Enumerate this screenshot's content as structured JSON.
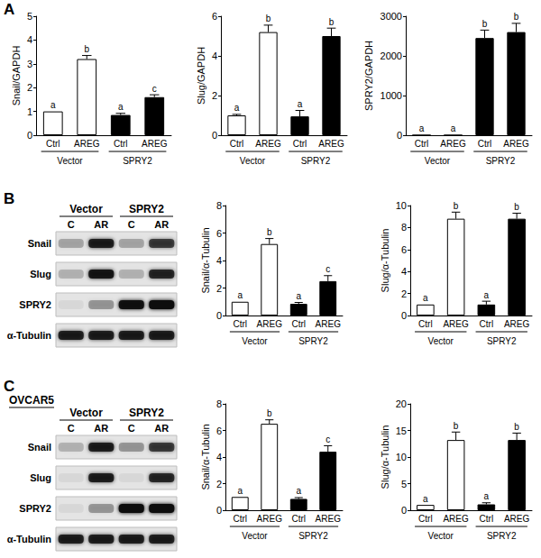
{
  "panel_labels": [
    "A",
    "B",
    "C"
  ],
  "cell_line": {
    "panel": "C",
    "label": "OVCAR5"
  },
  "chart_data": [
    {
      "type": "bar",
      "panel": "A",
      "y_label": "Snail/GAPDH",
      "categories": [
        "Ctrl",
        "AREG",
        "Ctrl",
        "AREG"
      ],
      "groups": [
        "Vector",
        "SPRY2"
      ],
      "values": [
        1,
        3.2,
        0.85,
        1.6
      ],
      "errors": [
        0,
        0.15,
        0.07,
        0.1
      ],
      "letters": [
        "a",
        "b",
        "a",
        "c"
      ],
      "colors": [
        "#ffffff",
        "#ffffff",
        "#000000",
        "#000000"
      ],
      "ylim": [
        0,
        5
      ],
      "yticks": [
        0,
        1,
        2,
        3,
        4,
        5
      ],
      "grid": false
    },
    {
      "type": "bar",
      "panel": "A",
      "y_label": "Slug/GAPDH",
      "categories": [
        "Ctrl",
        "AREG",
        "Ctrl",
        "AREG"
      ],
      "groups": [
        "Vector",
        "SPRY2"
      ],
      "values": [
        1,
        5.2,
        0.95,
        5.0
      ],
      "errors": [
        0.05,
        0.35,
        0.3,
        0.4
      ],
      "letters": [
        "a",
        "b",
        "a",
        "b"
      ],
      "colors": [
        "#ffffff",
        "#ffffff",
        "#000000",
        "#000000"
      ],
      "ylim": [
        0,
        6
      ],
      "yticks": [
        0,
        2,
        4,
        6
      ],
      "grid": false
    },
    {
      "type": "bar",
      "panel": "A",
      "y_label": "SPRY2/GAPDH",
      "categories": [
        "Ctrl",
        "AREG",
        "Ctrl",
        "AREG"
      ],
      "groups": [
        "Vector",
        "SPRY2"
      ],
      "values": [
        1,
        1,
        2450,
        2600
      ],
      "errors": [
        0,
        0,
        200,
        220
      ],
      "letters": [
        "a",
        "a",
        "b",
        "b"
      ],
      "colors": [
        "#ffffff",
        "#ffffff",
        "#000000",
        "#000000"
      ],
      "ylim": [
        0,
        3000
      ],
      "yticks": [
        0,
        1000,
        2000,
        3000
      ],
      "grid": false
    },
    {
      "type": "bar",
      "panel": "B",
      "y_label": "Snail/α-Tubulin",
      "categories": [
        "Ctrl",
        "AREG",
        "Ctrl",
        "AREG"
      ],
      "groups": [
        "Vector",
        "SPRY2"
      ],
      "values": [
        1,
        5.2,
        0.85,
        2.5
      ],
      "errors": [
        0,
        0.4,
        0.1,
        0.4
      ],
      "letters": [
        "a",
        "b",
        "a",
        "c"
      ],
      "colors": [
        "#ffffff",
        "#ffffff",
        "#000000",
        "#000000"
      ],
      "ylim": [
        0,
        8
      ],
      "yticks": [
        0,
        2,
        4,
        6,
        8
      ],
      "grid": false
    },
    {
      "type": "bar",
      "panel": "B",
      "y_label": "Slug/α-Tubulin",
      "categories": [
        "Ctrl",
        "AREG",
        "Ctrl",
        "AREG"
      ],
      "groups": [
        "Vector",
        "SPRY2"
      ],
      "values": [
        1,
        8.8,
        1.0,
        8.8
      ],
      "errors": [
        0,
        0.6,
        0.3,
        0.5
      ],
      "letters": [
        "a",
        "b",
        "a",
        "b"
      ],
      "colors": [
        "#ffffff",
        "#ffffff",
        "#000000",
        "#000000"
      ],
      "ylim": [
        0,
        10
      ],
      "yticks": [
        0,
        2,
        4,
        6,
        8,
        10
      ],
      "grid": false
    },
    {
      "type": "bar",
      "panel": "C",
      "y_label": "Snail/α-Tubulin",
      "categories": [
        "Ctrl",
        "AREG",
        "Ctrl",
        "AREG"
      ],
      "groups": [
        "Vector",
        "SPRY2"
      ],
      "values": [
        1,
        6.5,
        0.85,
        4.4
      ],
      "errors": [
        0,
        0.3,
        0.1,
        0.45
      ],
      "letters": [
        "a",
        "b",
        "a",
        "c"
      ],
      "colors": [
        "#ffffff",
        "#ffffff",
        "#000000",
        "#000000"
      ],
      "ylim": [
        0,
        8
      ],
      "yticks": [
        0,
        2,
        4,
        6,
        8
      ],
      "grid": false
    },
    {
      "type": "bar",
      "panel": "C",
      "y_label": "Slug/α-Tubulin",
      "categories": [
        "Ctrl",
        "AREG",
        "Ctrl",
        "AREG"
      ],
      "groups": [
        "Vector",
        "SPRY2"
      ],
      "values": [
        1,
        13.2,
        1.1,
        13.2
      ],
      "errors": [
        0,
        1.5,
        0.3,
        1.3
      ],
      "letters": [
        "a",
        "b",
        "a",
        "b"
      ],
      "colors": [
        "#ffffff",
        "#ffffff",
        "#000000",
        "#000000"
      ],
      "ylim": [
        0,
        20
      ],
      "yticks": [
        0,
        5,
        10,
        15,
        20
      ],
      "grid": false
    }
  ],
  "blots": [
    {
      "panel": "B",
      "groups": [
        "Vector",
        "SPRY2"
      ],
      "lanes": [
        "C",
        "AR",
        "C",
        "AR"
      ],
      "rows": [
        {
          "label": "Snail",
          "intensity": [
            0.25,
            0.85,
            0.25,
            0.7
          ]
        },
        {
          "label": "Slug",
          "intensity": [
            0.2,
            0.9,
            0.2,
            0.8
          ]
        },
        {
          "label": "SPRY2",
          "intensity": [
            0.05,
            0.3,
            0.95,
            1.0
          ]
        },
        {
          "label": "α-Tubulin",
          "intensity": [
            0.85,
            0.85,
            0.85,
            0.85
          ]
        }
      ]
    },
    {
      "panel": "C",
      "groups": [
        "Vector",
        "SPRY2"
      ],
      "lanes": [
        "C",
        "AR",
        "C",
        "AR"
      ],
      "rows": [
        {
          "label": "Snail",
          "intensity": [
            0.2,
            0.85,
            0.3,
            0.7
          ]
        },
        {
          "label": "Slug",
          "intensity": [
            0.05,
            0.85,
            0.05,
            0.8
          ]
        },
        {
          "label": "SPRY2",
          "intensity": [
            0.05,
            0.3,
            1.0,
            1.0
          ]
        },
        {
          "label": "α-Tubulin",
          "intensity": [
            0.85,
            0.85,
            0.85,
            0.85
          ]
        }
      ]
    }
  ]
}
